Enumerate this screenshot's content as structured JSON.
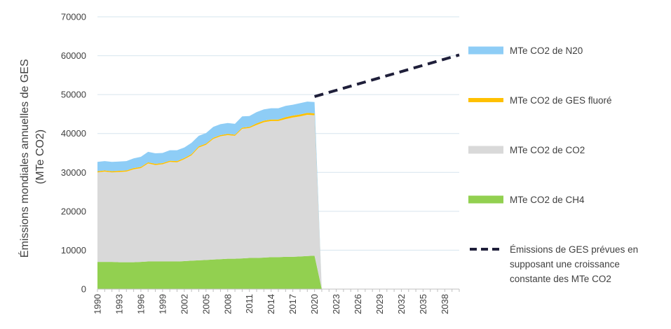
{
  "chart_data": {
    "type": "area",
    "ylabel_lines": [
      "Émissions mondiales annuelles de GES",
      "(MTe CO2)"
    ],
    "ylim": [
      0,
      70000
    ],
    "yticks": [
      0,
      10000,
      20000,
      30000,
      40000,
      50000,
      60000,
      70000
    ],
    "xlim": [
      1990,
      2040
    ],
    "xticks": [
      1990,
      1993,
      1996,
      1999,
      2002,
      2005,
      2008,
      2011,
      2014,
      2017,
      2020,
      2023,
      2026,
      2029,
      2032,
      2035,
      2038
    ],
    "grid": "horizontal",
    "legend_position": "right",
    "x": [
      1990,
      1991,
      1992,
      1993,
      1994,
      1995,
      1996,
      1997,
      1998,
      1999,
      2000,
      2001,
      2002,
      2003,
      2004,
      2005,
      2006,
      2007,
      2008,
      2009,
      2010,
      2011,
      2012,
      2013,
      2014,
      2015,
      2016,
      2017,
      2018,
      2019,
      2020,
      2021
    ],
    "series": [
      {
        "name": "MTe CO2 de CH4",
        "color": "#92d050",
        "values": [
          7000,
          7000,
          7000,
          6900,
          6900,
          6900,
          7000,
          7100,
          7100,
          7100,
          7100,
          7100,
          7200,
          7300,
          7400,
          7500,
          7600,
          7700,
          7800,
          7800,
          7900,
          8000,
          8000,
          8100,
          8200,
          8200,
          8300,
          8300,
          8400,
          8500,
          8600,
          0
        ]
      },
      {
        "name": "MTe CO2 de CO2",
        "color": "#d9d9d9",
        "values": [
          23000,
          23200,
          23000,
          23200,
          23300,
          23900,
          24100,
          25200,
          24800,
          25000,
          25600,
          25500,
          26200,
          27100,
          29000,
          29600,
          31000,
          31600,
          31800,
          31600,
          33300,
          33400,
          34200,
          34800,
          35000,
          35000,
          35400,
          35800,
          36000,
          36300,
          36100,
          0
        ]
      },
      {
        "name": "MTe CO2 de GES fluoré",
        "color": "#ffc000",
        "values": [
          300,
          300,
          300,
          300,
          300,
          300,
          300,
          300,
          300,
          300,
          300,
          300,
          300,
          300,
          300,
          300,
          300,
          300,
          300,
          300,
          300,
          300,
          400,
          400,
          400,
          400,
          500,
          500,
          500,
          500,
          500,
          0
        ]
      },
      {
        "name": "MTe CO2 de N20",
        "color": "#8ecdf6",
        "values": [
          2400,
          2400,
          2400,
          2400,
          2400,
          2500,
          2600,
          2700,
          2700,
          2600,
          2700,
          2800,
          2700,
          2900,
          2700,
          2700,
          2800,
          2800,
          2800,
          2800,
          2900,
          2800,
          2900,
          2900,
          2900,
          2900,
          2900,
          2800,
          2900,
          2900,
          2900,
          0
        ]
      }
    ],
    "projection": {
      "name": "Émissions de GES prévues en supposant une croissance constante des MTe CO2",
      "legend_lines": [
        "Émissions de GES prévues en",
        "supposant une croissance",
        "constante des MTe CO2"
      ],
      "color": "#1f1f3a",
      "x": [
        2020,
        2040
      ],
      "values": [
        49500,
        60200
      ]
    }
  }
}
